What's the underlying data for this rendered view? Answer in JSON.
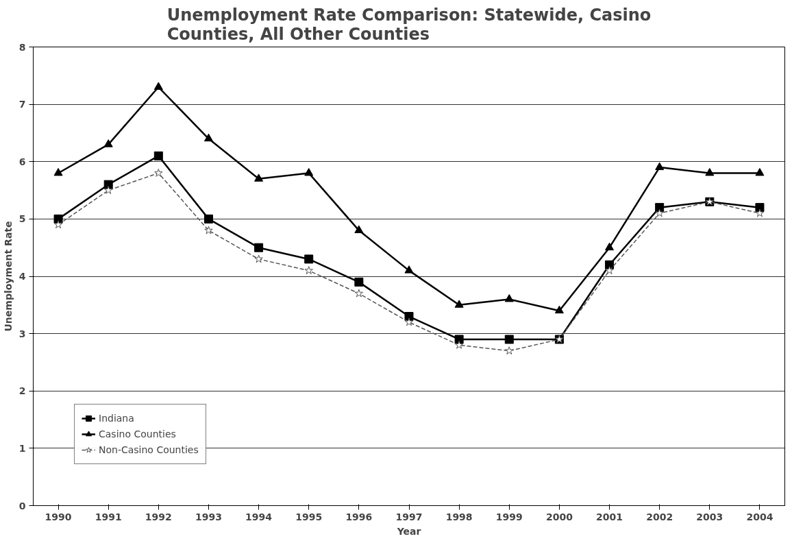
{
  "chart_data": {
    "type": "line",
    "title": "Unemployment Rate Comparison: Statewide, Casino Counties, All Other Counties",
    "xlabel": "Year",
    "ylabel": "Unemployment Rate",
    "categories": [
      "1990",
      "1991",
      "1992",
      "1993",
      "1994",
      "1995",
      "1996",
      "1997",
      "1998",
      "1999",
      "2000",
      "2001",
      "2002",
      "2003",
      "2004"
    ],
    "series": [
      {
        "name": "Indiana",
        "color": "#000000",
        "marker": "square",
        "line_style": "solid",
        "values": [
          5.0,
          5.6,
          6.1,
          5.0,
          4.5,
          4.3,
          3.9,
          3.3,
          2.9,
          2.9,
          2.9,
          4.2,
          5.2,
          5.3,
          5.2
        ]
      },
      {
        "name": "Casino Counties",
        "color": "#000000",
        "marker": "triangle",
        "line_style": "solid",
        "values": [
          5.8,
          6.3,
          7.3,
          6.4,
          5.7,
          5.8,
          4.8,
          4.1,
          3.5,
          3.6,
          3.4,
          4.5,
          5.9,
          5.8,
          5.8
        ]
      },
      {
        "name": "Non-Casino Counties",
        "color": "#555555",
        "marker": "star",
        "line_style": "dashed",
        "values": [
          4.9,
          5.5,
          5.8,
          4.8,
          4.3,
          4.1,
          3.7,
          3.2,
          2.8,
          2.7,
          2.9,
          4.1,
          5.1,
          5.3,
          5.1
        ]
      }
    ],
    "ylim": [
      0,
      8
    ],
    "yticks": [
      0,
      1,
      2,
      3,
      4,
      5,
      6,
      7,
      8
    ],
    "grid": "y",
    "legend": "bottom left"
  }
}
